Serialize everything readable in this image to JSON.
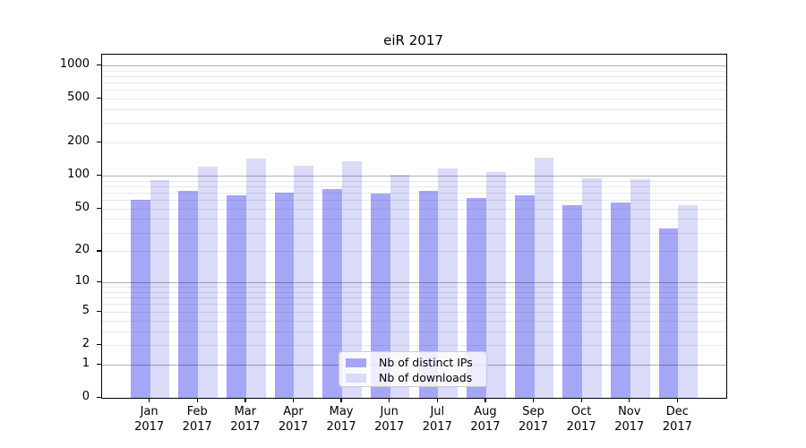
{
  "chart_data": {
    "type": "bar",
    "title": "eiR 2017",
    "categories": [
      "Jan 2017",
      "Feb 2017",
      "Mar 2017",
      "Apr 2017",
      "May 2017",
      "Jun 2017",
      "Jul 2017",
      "Aug 2017",
      "Sep 2017",
      "Oct 2017",
      "Nov 2017",
      "Dec 2017"
    ],
    "category_month": [
      "Jan",
      "Feb",
      "Mar",
      "Apr",
      "May",
      "Jun",
      "Jul",
      "Aug",
      "Sep",
      "Oct",
      "Nov",
      "Dec"
    ],
    "category_year": "2017",
    "series": [
      {
        "name": "Nb of distinct IPs",
        "color": "#a6a6f7",
        "values": [
          60,
          73,
          66,
          70,
          76,
          69,
          73,
          62,
          66,
          54,
          57,
          33
        ]
      },
      {
        "name": "Nb of downloads",
        "color": "#dadaf9",
        "values": [
          92,
          120,
          142,
          123,
          136,
          102,
          117,
          107,
          146,
          94,
          93,
          54
        ]
      }
    ],
    "yscale": "log1p",
    "ylim": [
      0,
      1250
    ],
    "ytick_values": [
      0,
      1,
      2,
      5,
      10,
      20,
      50,
      100,
      200,
      500,
      1000
    ],
    "ytick_labels": [
      "0",
      "1",
      "2",
      "5",
      "10",
      "20",
      "50",
      "100",
      "200",
      "500",
      "1000"
    ],
    "major_grid_values": [
      1,
      10,
      100,
      1000
    ],
    "minor_grid_values": [
      2,
      3,
      4,
      5,
      6,
      7,
      8,
      9,
      20,
      30,
      40,
      50,
      60,
      70,
      80,
      90,
      200,
      300,
      400,
      500,
      600,
      700,
      800,
      900
    ],
    "grid": true,
    "legend_position": "inside lower-center"
  },
  "legend": {
    "items": [
      {
        "label": "Nb of distinct IPs",
        "color": "#a6a6f7"
      },
      {
        "label": "Nb of downloads",
        "color": "#dadaf9"
      }
    ]
  },
  "colors": {
    "background": "#ffffff",
    "spine": "#000000",
    "major_grid": "rgba(0,0,0,0.30)",
    "minor_grid": "rgba(0,0,0,0.09)",
    "bar_distinct_ips": "#a6a6f7",
    "bar_downloads": "#dadaf9"
  }
}
